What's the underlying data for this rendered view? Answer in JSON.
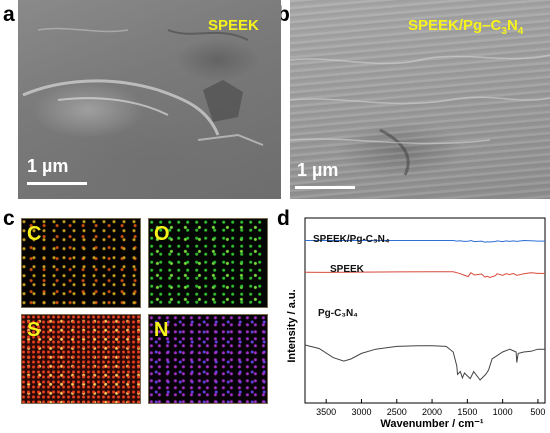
{
  "panels": {
    "a": {
      "letter": "a",
      "label": "SPEEK",
      "scale": "1 µm"
    },
    "b": {
      "letter": "b",
      "label_main": "SPEEK/Pg–C",
      "label_sub1": "3",
      "label_mid": "N",
      "label_sub2": "4",
      "scale": "1 µm"
    },
    "c": {
      "letter": "c",
      "maps": [
        "C",
        "O",
        "S",
        "N"
      ]
    },
    "d": {
      "letter": "d"
    }
  },
  "chart_data": {
    "type": "line",
    "xlabel": "Wavenumber / cm⁻¹",
    "ylabel": "Intensity / a.u.",
    "x_reversed": true,
    "xlim": [
      3800,
      400
    ],
    "xticks": [
      3500,
      3000,
      2500,
      2000,
      1500,
      1000,
      500
    ],
    "yticks_shown": false,
    "series": [
      {
        "name": "SPEEK/Pg-C₃N₄",
        "color": "#2f6fd6",
        "x": [
          3800,
          3500,
          3000,
          2500,
          2000,
          1700,
          1650,
          1600,
          1550,
          1490,
          1450,
          1400,
          1300,
          1250,
          1220,
          1180,
          1100,
          1080,
          1000,
          950,
          900,
          850,
          800,
          700,
          600,
          500,
          400
        ],
        "y": [
          97,
          97,
          97,
          97,
          97.5,
          97,
          94,
          96,
          92,
          93,
          97,
          91,
          94,
          88,
          90,
          89,
          92,
          95,
          91,
          95,
          92,
          95,
          92,
          97,
          96,
          94,
          94
        ]
      },
      {
        "name": "SPEEK",
        "color": "#d84a3a",
        "x": [
          3800,
          3500,
          3000,
          2500,
          2000,
          1700,
          1650,
          1600,
          1550,
          1490,
          1450,
          1400,
          1300,
          1250,
          1220,
          1180,
          1100,
          1080,
          1000,
          950,
          900,
          850,
          800,
          700,
          600,
          500,
          400
        ],
        "y": [
          80.5,
          80,
          81,
          81.5,
          82,
          82,
          79,
          76,
          72,
          67,
          79,
          72,
          75,
          65,
          68,
          64,
          70,
          76,
          71,
          76,
          73,
          77,
          71,
          76,
          79,
          77,
          77
        ]
      },
      {
        "name": "Pg-C₃N₄",
        "color": "#444444",
        "x": [
          3800,
          3600,
          3400,
          3250,
          3150,
          3000,
          2800,
          2500,
          2200,
          2000,
          1800,
          1700,
          1650,
          1640,
          1600,
          1570,
          1540,
          1460,
          1410,
          1320,
          1240,
          1200,
          1150,
          1000,
          900,
          810,
          800,
          780,
          700,
          600,
          500,
          400
        ],
        "y": [
          50,
          45,
          32,
          27,
          30,
          38,
          44,
          48,
          49,
          49,
          48,
          40,
          20,
          8,
          12,
          3,
          10,
          2,
          12,
          0,
          8,
          14,
          30,
          40,
          44,
          40,
          25,
          38,
          40,
          41,
          44,
          44
        ]
      }
    ]
  }
}
